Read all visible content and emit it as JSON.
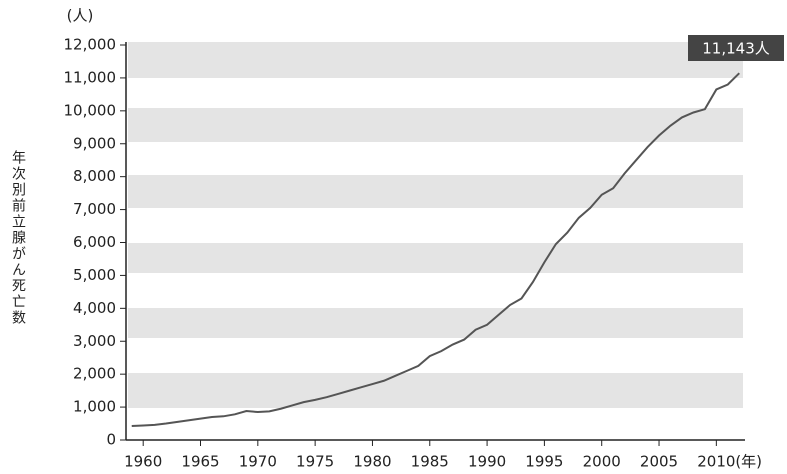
{
  "chart_data": {
    "type": "line",
    "y_unit": "(人)",
    "y_label": "年次別前立腺がん死亡数",
    "x_label": "(年)",
    "annotation": "11,143人",
    "color": "#555555",
    "x": [
      1959,
      1960,
      1961,
      1962,
      1963,
      1964,
      1965,
      1966,
      1967,
      1968,
      1969,
      1970,
      1971,
      1972,
      1973,
      1974,
      1975,
      1976,
      1977,
      1978,
      1979,
      1980,
      1981,
      1982,
      1983,
      1984,
      1985,
      1986,
      1987,
      1988,
      1989,
      1990,
      1991,
      1992,
      1993,
      1994,
      1995,
      1996,
      1997,
      1998,
      1999,
      2000,
      2001,
      2002,
      2003,
      2004,
      2005,
      2006,
      2007,
      2008,
      2009,
      2010,
      2011,
      2012
    ],
    "values": [
      425,
      440,
      460,
      500,
      550,
      600,
      650,
      700,
      720,
      780,
      880,
      850,
      870,
      950,
      1050,
      1150,
      1220,
      1300,
      1400,
      1500,
      1600,
      1700,
      1800,
      1950,
      2100,
      2250,
      2550,
      2700,
      2900,
      3050,
      3350,
      3500,
      3800,
      4100,
      4300,
      4800,
      5400,
      5950,
      6300,
      6750,
      7050,
      7450,
      7650,
      8100,
      8500,
      8900,
      9250,
      9550,
      9800,
      9950,
      10050,
      10650,
      10800,
      11143
    ],
    "xlim": [
      1958.5,
      2012.5
    ],
    "xticks": [
      1960,
      1965,
      1970,
      1975,
      1980,
      1985,
      1990,
      1995,
      2000,
      2005,
      2010
    ],
    "ylim": [
      0,
      12000
    ],
    "yticks": [
      0,
      {
        "value": 1000,
        "label": "1,000"
      },
      {
        "value": 2000,
        "label": "2,000"
      },
      {
        "value": 3000,
        "label": "3,000"
      },
      {
        "value": 4000,
        "label": "4,000"
      },
      {
        "value": 5000,
        "label": "5,000"
      },
      {
        "value": 6000,
        "label": "6,000"
      },
      {
        "value": 7000,
        "label": "7,000"
      },
      {
        "value": 8000,
        "label": "8,000"
      },
      {
        "value": 9000,
        "label": "9,000"
      },
      {
        "value": 10000,
        "label": "10,000"
      },
      {
        "value": 11000,
        "label": "11,000"
      },
      {
        "value": 12000,
        "label": "12,000"
      }
    ]
  }
}
